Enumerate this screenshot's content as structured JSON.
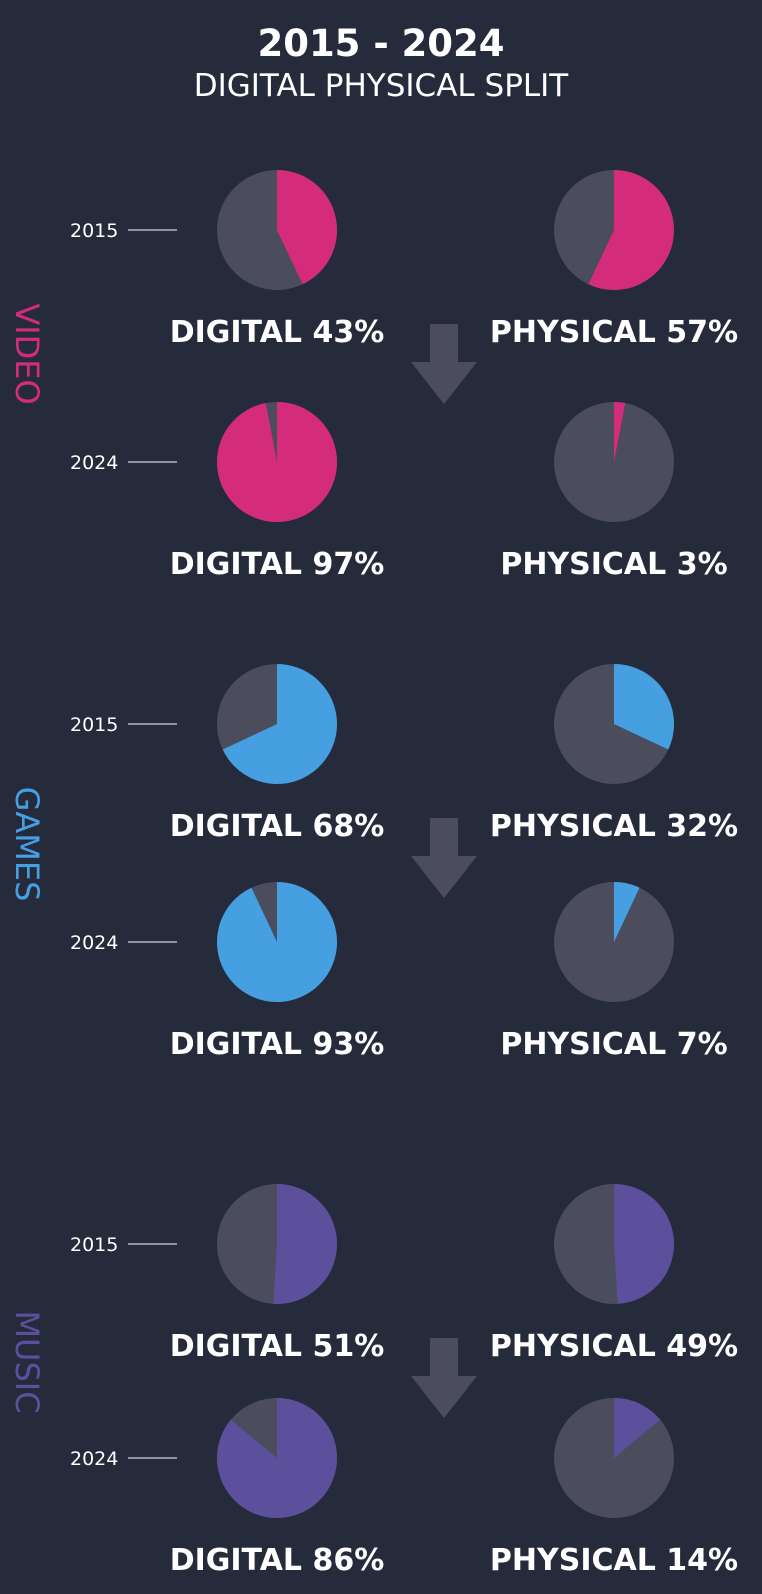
{
  "header": {
    "title": "2015 - 2024",
    "subtitle": "DIGITAL PHYSICAL SPLIT"
  },
  "colors": {
    "background": "#262b3c",
    "pie_base": "#4b4c5c",
    "arrow": "#4b4c5c",
    "video": "#d42c7a",
    "games": "#459fe0",
    "music": "#5c4f9c"
  },
  "chart_data": {
    "type": "pie",
    "title": "2015 - 2024",
    "subtitle": "DIGITAL PHYSICAL SPLIT",
    "sections": [
      {
        "name": "VIDEO",
        "color": "#d42c7a",
        "years": [
          {
            "year": "2015",
            "digital": 43,
            "physical": 57,
            "digital_label": "DIGITAL 43%",
            "physical_label": "PHYSICAL 57%"
          },
          {
            "year": "2024",
            "digital": 97,
            "physical": 3,
            "digital_label": "DIGITAL 97%",
            "physical_label": "PHYSICAL 3%"
          }
        ]
      },
      {
        "name": "GAMES",
        "color": "#459fe0",
        "years": [
          {
            "year": "2015",
            "digital": 68,
            "physical": 32,
            "digital_label": "DIGITAL 68%",
            "physical_label": "PHYSICAL 32%"
          },
          {
            "year": "2024",
            "digital": 93,
            "physical": 7,
            "digital_label": "DIGITAL 93%",
            "physical_label": "PHYSICAL 7%"
          }
        ]
      },
      {
        "name": "MUSIC",
        "color": "#5c4f9c",
        "years": [
          {
            "year": "2015",
            "digital": 51,
            "physical": 49,
            "digital_label": "DIGITAL 51%",
            "physical_label": "PHYSICAL 49%"
          },
          {
            "year": "2024",
            "digital": 86,
            "physical": 14,
            "digital_label": "DIGITAL 86%",
            "physical_label": "PHYSICAL 14%"
          }
        ]
      }
    ]
  }
}
